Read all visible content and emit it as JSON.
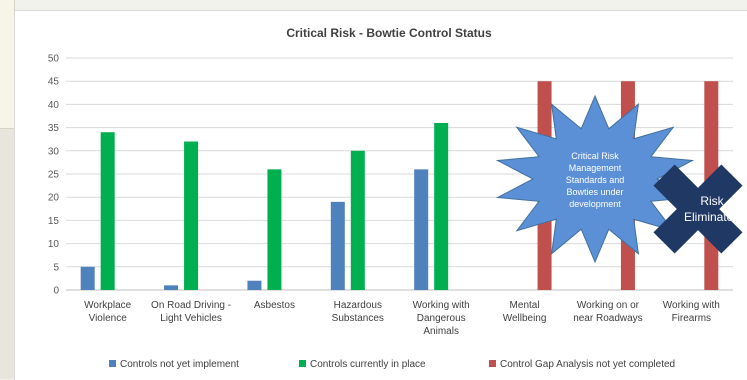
{
  "chart_data": {
    "type": "bar",
    "title": "Critical Risk - Bowtie Control Status",
    "xlabel": "",
    "ylabel": "",
    "ylim": [
      0,
      50
    ],
    "yticks": [
      0,
      5,
      10,
      15,
      20,
      25,
      30,
      35,
      40,
      45,
      50
    ],
    "grid": true,
    "legend_position": "bottom",
    "categories": [
      [
        "Workplace",
        "Violence"
      ],
      [
        "On Road Driving -",
        "Light Vehicles"
      ],
      [
        "Asbestos"
      ],
      [
        "Hazardous",
        "Substances"
      ],
      [
        "Working with",
        "Dangerous",
        "Animals"
      ],
      [
        "Mental",
        "Wellbeing"
      ],
      [
        "Working on or",
        "near Roadways"
      ],
      [
        "Working with",
        "Firearms"
      ]
    ],
    "series": [
      {
        "name": "Controls not yet implement",
        "color": "#4f81bd",
        "values": [
          5,
          1,
          2,
          19,
          26,
          0,
          0,
          0
        ]
      },
      {
        "name": "Controls currently in place",
        "color": "#00b050",
        "values": [
          34,
          32,
          26,
          30,
          36,
          0,
          0,
          0
        ]
      },
      {
        "name": "Control Gap Analysis not yet completed",
        "color": "#c0504d",
        "values": [
          0,
          0,
          0,
          0,
          0,
          45,
          45,
          45
        ]
      }
    ],
    "annotations": {
      "burst": {
        "lines": [
          "Critical Risk",
          "Management",
          "Standards and",
          "Bowties under",
          "development"
        ],
        "fill": "#5b8fd6"
      },
      "cross": {
        "lines": [
          "Risk",
          "Eliminated"
        ],
        "fill": "#1f3864"
      }
    }
  }
}
